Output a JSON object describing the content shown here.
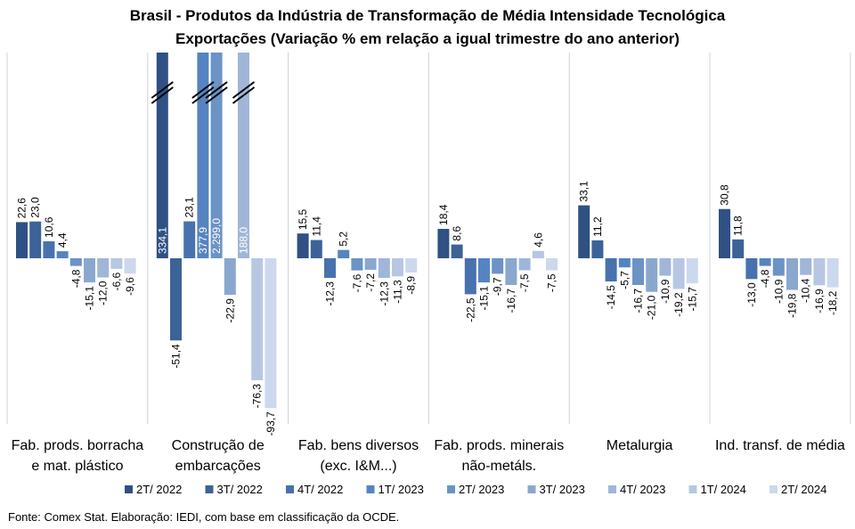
{
  "chart_data": {
    "type": "bar",
    "title": "Brasil - Produtos da Indústria de Transformação de Média Intensidade Tecnológica",
    "subtitle": "Exportações (Variação % em relação a igual trimestre do ano anterior)",
    "categories": [
      [
        "Fab. prods. borracha",
        "e mat. plástico"
      ],
      [
        "Construção de",
        "embarcações"
      ],
      [
        "Fab. bens diversos",
        "(exc. I&M...)"
      ],
      [
        "Fab. prods. minerais",
        "não-metáls."
      ],
      [
        "Metalurgia"
      ],
      [
        "Ind. transf. de média"
      ]
    ],
    "series": [
      {
        "name": "2T/ 2022",
        "color": "#2f5183",
        "values": [
          22.6,
          334.1,
          15.5,
          18.4,
          33.1,
          30.8
        ],
        "labels": [
          "22,6",
          "334,1",
          "15,5",
          "18,4",
          "33,1",
          "30,8"
        ]
      },
      {
        "name": "3T/ 2022",
        "color": "#3b6397",
        "values": [
          23.0,
          -51.4,
          11.4,
          8.6,
          11.2,
          11.8
        ],
        "labels": [
          "23,0",
          "-51,4",
          "11,4",
          "8,6",
          "11,2",
          "11,8"
        ]
      },
      {
        "name": "4T/ 2022",
        "color": "#4772ad",
        "values": [
          10.6,
          23.1,
          -12.3,
          -22.5,
          -14.5,
          -13.0
        ],
        "labels": [
          "10,6",
          "23,1",
          "-12,3",
          "-22,5",
          "-14,5",
          "-13,0"
        ]
      },
      {
        "name": "1T/ 2023",
        "color": "#5584c0",
        "values": [
          4.4,
          377.9,
          5.2,
          -15.1,
          -5.7,
          -4.8
        ],
        "labels": [
          "4,4",
          "377,9",
          "5,2",
          "-15,1",
          "-5,7",
          "-4,8"
        ]
      },
      {
        "name": "2T/ 2023",
        "color": "#6b93c6",
        "values": [
          -4.8,
          2299.0,
          -7.6,
          -9.7,
          -16.7,
          -10.9
        ],
        "labels": [
          "-4,8",
          "2.299,0",
          "-7,6",
          "-9,7",
          "-16,7",
          "-10,9"
        ]
      },
      {
        "name": "3T/ 2023",
        "color": "#8aa7ce",
        "values": [
          -15.1,
          -22.9,
          -7.2,
          -16.7,
          -21.0,
          -19.8
        ],
        "labels": [
          "-15,1",
          "-22,9",
          "-7,2",
          "-16,7",
          "-21,0",
          "-19,8"
        ]
      },
      {
        "name": "4T/ 2023",
        "color": "#a0b6d9",
        "values": [
          -12.0,
          188.0,
          -12.3,
          -7.5,
          -10.9,
          -10.4
        ],
        "labels": [
          "-12,0",
          "188,0",
          "-12,3",
          "-7,5",
          "-10,9",
          "-10,4"
        ]
      },
      {
        "name": "1T/ 2024",
        "color": "#b7c7e3",
        "values": [
          -6.6,
          -76.3,
          -11.3,
          4.6,
          -19.2,
          -16.9
        ],
        "labels": [
          "-6,6",
          "-76,3",
          "-11,3",
          "4,6",
          "-19,2",
          "-16,9"
        ]
      },
      {
        "name": "2T/ 2024",
        "color": "#ccd8ed",
        "values": [
          -9.6,
          -93.7,
          -8.9,
          -7.5,
          -15.7,
          -18.2
        ],
        "labels": [
          "-9,6",
          "-93,7",
          "-8,9",
          "-7,5",
          "-15,7",
          "-18,2"
        ]
      }
    ],
    "truncated_bars": "values beyond the plot top are drawn cut with a double-slash break mark",
    "gridlines": false,
    "category_separators": true,
    "legend_position": "bottom"
  },
  "source": "Fonte: Comex Stat. Elaboração: IEDI, com base em classificação da OCDE."
}
